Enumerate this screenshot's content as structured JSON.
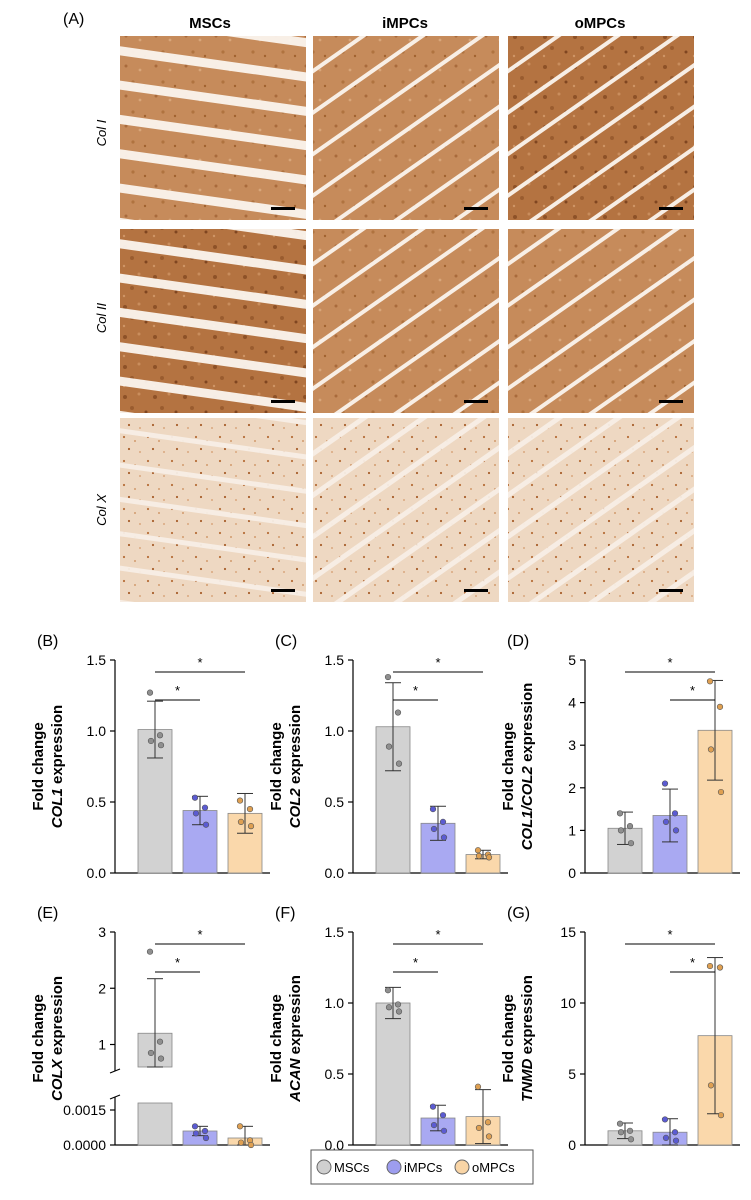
{
  "panel_a": {
    "tag": "(A)",
    "columns": [
      "MSCs",
      "iMPCs",
      "oMPCs"
    ],
    "rows": [
      "Col I",
      "Col II",
      "Col X"
    ]
  },
  "legend": [
    {
      "name": "MSCs",
      "color": "#cfcfcf"
    },
    {
      "name": "iMPCs",
      "color": "#9d9def"
    },
    {
      "name": "oMPCs",
      "color": "#f9d5a6"
    }
  ],
  "colors": {
    "MSCs": {
      "fill": "#d2d2d2",
      "point": "#8f8f8f"
    },
    "iMPCs": {
      "fill": "#a9a9f2",
      "point": "#5b5bd2"
    },
    "oMPCs": {
      "fill": "#fad8ab",
      "point": "#dfa052"
    },
    "stain_dark": "#b06e3c",
    "stain_mid": "#c88a5a",
    "stain_light": "#e8c7a6"
  },
  "chart_data": [
    {
      "id": "B",
      "tag": "(B)",
      "type": "bar",
      "ylabel_line1": "Fold change",
      "ylabel_gene": "COL1",
      "ylabel_suffix": " expression",
      "ylim": [
        0,
        1.5
      ],
      "yticks": [
        "0.0",
        "0.5",
        "1.0",
        "1.5"
      ],
      "categories": [
        "MSCs",
        "iMPCs",
        "oMPCs"
      ],
      "values": [
        1.01,
        0.44,
        0.42
      ],
      "errors": [
        0.2,
        0.1,
        0.14
      ],
      "points": [
        [
          1.27,
          0.97,
          0.93,
          0.9
        ],
        [
          0.53,
          0.46,
          0.42,
          0.34
        ],
        [
          0.51,
          0.45,
          0.36,
          0.33
        ]
      ],
      "significance": [
        {
          "from": 0,
          "to": 1,
          "label": "*"
        },
        {
          "from": 0,
          "to": 2,
          "label": "*"
        }
      ]
    },
    {
      "id": "C",
      "tag": "(C)",
      "type": "bar",
      "ylabel_line1": "Fold change",
      "ylabel_gene": "COL2",
      "ylabel_suffix": " expression",
      "ylim": [
        0,
        1.5
      ],
      "yticks": [
        "0.0",
        "0.5",
        "1.0",
        "1.5"
      ],
      "categories": [
        "MSCs",
        "iMPCs",
        "oMPCs"
      ],
      "values": [
        1.03,
        0.35,
        0.13
      ],
      "errors": [
        0.31,
        0.12,
        0.03
      ],
      "points": [
        [
          1.38,
          1.13,
          0.89,
          0.77
        ],
        [
          0.45,
          0.36,
          0.31,
          0.25
        ],
        [
          0.16,
          0.13,
          0.12,
          0.11
        ]
      ],
      "significance": [
        {
          "from": 0,
          "to": 1,
          "label": "*"
        },
        {
          "from": 0,
          "to": 2,
          "label": "*"
        }
      ]
    },
    {
      "id": "D",
      "tag": "(D)",
      "type": "bar",
      "ylabel_line1": "Fold change",
      "ylabel_gene": "COL1/COL2",
      "ylabel_suffix": " expression",
      "ylim": [
        0,
        5
      ],
      "yticks": [
        "0",
        "1",
        "2",
        "3",
        "4",
        "5"
      ],
      "categories": [
        "MSCs",
        "iMPCs",
        "oMPCs"
      ],
      "values": [
        1.05,
        1.35,
        3.35
      ],
      "errors": [
        0.38,
        0.62,
        1.17
      ],
      "points": [
        [
          1.4,
          1.1,
          1.0,
          0.7
        ],
        [
          2.1,
          1.4,
          1.2,
          1.0
        ],
        [
          4.5,
          3.9,
          2.9,
          1.9
        ]
      ],
      "significance": [
        {
          "from": 0,
          "to": 2,
          "label": "*"
        },
        {
          "from": 1,
          "to": 2,
          "label": "*"
        }
      ]
    },
    {
      "id": "E",
      "tag": "(E)",
      "type": "bar",
      "ylabel_line1": "Fold change",
      "ylabel_gene": "COLX",
      "ylabel_suffix": " expression",
      "axis_break": true,
      "upper_ylim": [
        0.6,
        3
      ],
      "upper_yticks": [
        "1",
        "2",
        "3"
      ],
      "lower_ylim": [
        0,
        0.0018
      ],
      "lower_yticks": [
        "0.0000",
        "0.0015"
      ],
      "categories": [
        "MSCs",
        "iMPCs",
        "oMPCs"
      ],
      "values": [
        1.2,
        0.0006,
        0.0003
      ],
      "errors": [
        0.97,
        0.0002,
        0.0005
      ],
      "points": [
        [
          2.65,
          1.05,
          0.85,
          0.75
        ],
        [
          0.0008,
          0.0006,
          0.0005,
          0.0003
        ],
        [
          0.0008,
          0.0002,
          0.0001,
          0.0
        ]
      ],
      "significance": [
        {
          "from": 0,
          "to": 1,
          "label": "*"
        },
        {
          "from": 0,
          "to": 2,
          "label": "*"
        }
      ]
    },
    {
      "id": "F",
      "tag": "(F)",
      "type": "bar",
      "ylabel_line1": "Fold change",
      "ylabel_gene": "ACAN",
      "ylabel_suffix": " expression",
      "ylim": [
        0,
        1.5
      ],
      "yticks": [
        "0.0",
        "0.5",
        "1.0",
        "1.5"
      ],
      "categories": [
        "MSCs",
        "iMPCs",
        "oMPCs"
      ],
      "values": [
        1.0,
        0.19,
        0.2
      ],
      "errors": [
        0.11,
        0.09,
        0.19
      ],
      "points": [
        [
          1.09,
          0.99,
          0.97,
          0.94
        ],
        [
          0.27,
          0.21,
          0.14,
          0.1
        ],
        [
          0.41,
          0.16,
          0.12,
          0.06
        ]
      ],
      "significance": [
        {
          "from": 0,
          "to": 1,
          "label": "*"
        },
        {
          "from": 0,
          "to": 2,
          "label": "*"
        }
      ]
    },
    {
      "id": "G",
      "tag": "(G)",
      "type": "bar",
      "ylabel_line1": "Fold change",
      "ylabel_gene": "TNMD",
      "ylabel_suffix": " expression",
      "ylim": [
        0,
        15
      ],
      "yticks": [
        "0",
        "5",
        "10",
        "15"
      ],
      "categories": [
        "MSCs",
        "iMPCs",
        "oMPCs"
      ],
      "values": [
        1.0,
        0.9,
        7.7
      ],
      "errors": [
        0.55,
        0.95,
        5.5
      ],
      "points": [
        [
          1.5,
          1.0,
          0.9,
          0.4
        ],
        [
          1.8,
          0.9,
          0.5,
          0.3
        ],
        [
          12.6,
          12.5,
          4.2,
          2.1
        ]
      ],
      "significance": [
        {
          "from": 0,
          "to": 2,
          "label": "*"
        },
        {
          "from": 1,
          "to": 2,
          "label": "*"
        }
      ]
    }
  ]
}
